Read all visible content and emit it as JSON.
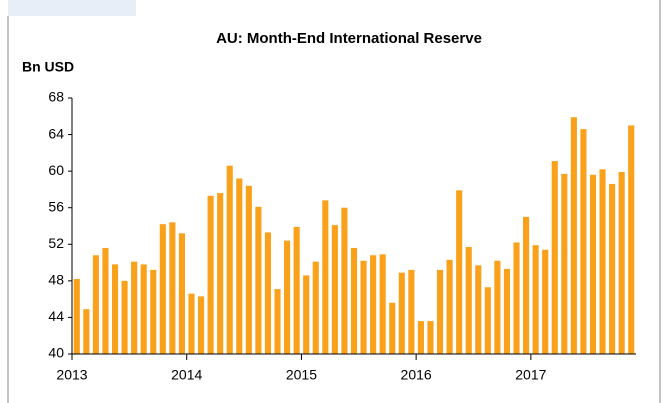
{
  "chart_data": {
    "type": "bar",
    "title": "AU: Month-End International Reserve",
    "y_label": "Bn USD",
    "categories": [
      "2013",
      null,
      null,
      null,
      null,
      null,
      null,
      null,
      null,
      null,
      null,
      null,
      "2014",
      null,
      null,
      null,
      null,
      null,
      null,
      null,
      null,
      null,
      null,
      null,
      "2015",
      null,
      null,
      null,
      null,
      null,
      null,
      null,
      null,
      null,
      null,
      null,
      "2016",
      null,
      null,
      null,
      null,
      null,
      null,
      null,
      null,
      null,
      null,
      null,
      "2017",
      null,
      null,
      null,
      null,
      null,
      null,
      null,
      null,
      null,
      null
    ],
    "values": [
      48.2,
      44.9,
      50.8,
      51.6,
      49.8,
      48.0,
      50.1,
      49.8,
      49.2,
      54.2,
      54.4,
      53.2,
      46.6,
      46.3,
      57.3,
      57.6,
      60.6,
      59.2,
      58.4,
      56.1,
      53.3,
      47.1,
      52.4,
      53.9,
      48.6,
      50.1,
      56.8,
      54.1,
      56.0,
      51.6,
      50.2,
      50.8,
      50.9,
      45.6,
      48.9,
      49.2,
      43.6,
      43.6,
      49.2,
      50.3,
      57.9,
      51.7,
      49.7,
      47.3,
      50.2,
      49.3,
      52.2,
      55.0,
      51.9,
      51.4,
      61.1,
      59.7,
      65.9,
      64.6,
      59.6,
      60.2,
      58.6,
      59.9,
      65.0
    ],
    "color": "#f9a11b",
    "ylim": [
      40,
      68
    ],
    "yticks": [
      40,
      44,
      48,
      52,
      56,
      60,
      64,
      68
    ],
    "grid": false
  }
}
